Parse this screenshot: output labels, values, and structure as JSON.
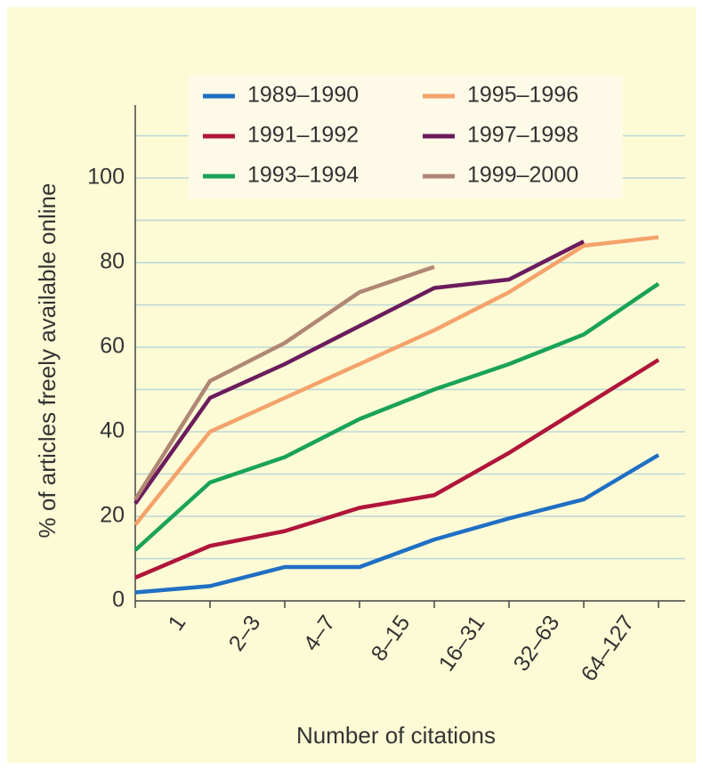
{
  "chart_data": {
    "type": "line",
    "x_label": "Number of citations",
    "y_label": "% of articles freely available online",
    "categories": [
      "1",
      "2–3",
      "4–7",
      "8–15",
      "16–31",
      "32–63",
      "64–127",
      null
    ],
    "ylim": [
      0,
      115
    ],
    "yticks": [
      0,
      20,
      40,
      60,
      80,
      100
    ],
    "minor_yticks": [
      10,
      30,
      50,
      70,
      90,
      110
    ],
    "grid": true,
    "legend": "top",
    "series": [
      {
        "name": "1989–1990",
        "color": "#1f6fc4",
        "values": [
          2,
          3.5,
          8,
          8,
          14.5,
          19.5,
          24,
          34.5
        ]
      },
      {
        "name": "1991–1992",
        "color": "#b0153a",
        "values": [
          5.5,
          13,
          16.5,
          22,
          25,
          35,
          46,
          57
        ]
      },
      {
        "name": "1993–1994",
        "color": "#1aa357",
        "values": [
          12,
          28,
          34,
          43,
          50,
          56,
          63,
          75
        ]
      },
      {
        "name": "1995–1996",
        "color": "#f4a26b",
        "values": [
          18,
          40,
          48,
          56,
          64,
          73,
          84,
          86
        ]
      },
      {
        "name": "1997–1998",
        "color": "#6b1c5c",
        "values": [
          23,
          48,
          56,
          65,
          74,
          76,
          85,
          null
        ]
      },
      {
        "name": "1999–2000",
        "color": "#b08775",
        "values": [
          24,
          52,
          61,
          73,
          79,
          null,
          null,
          null
        ]
      }
    ]
  }
}
